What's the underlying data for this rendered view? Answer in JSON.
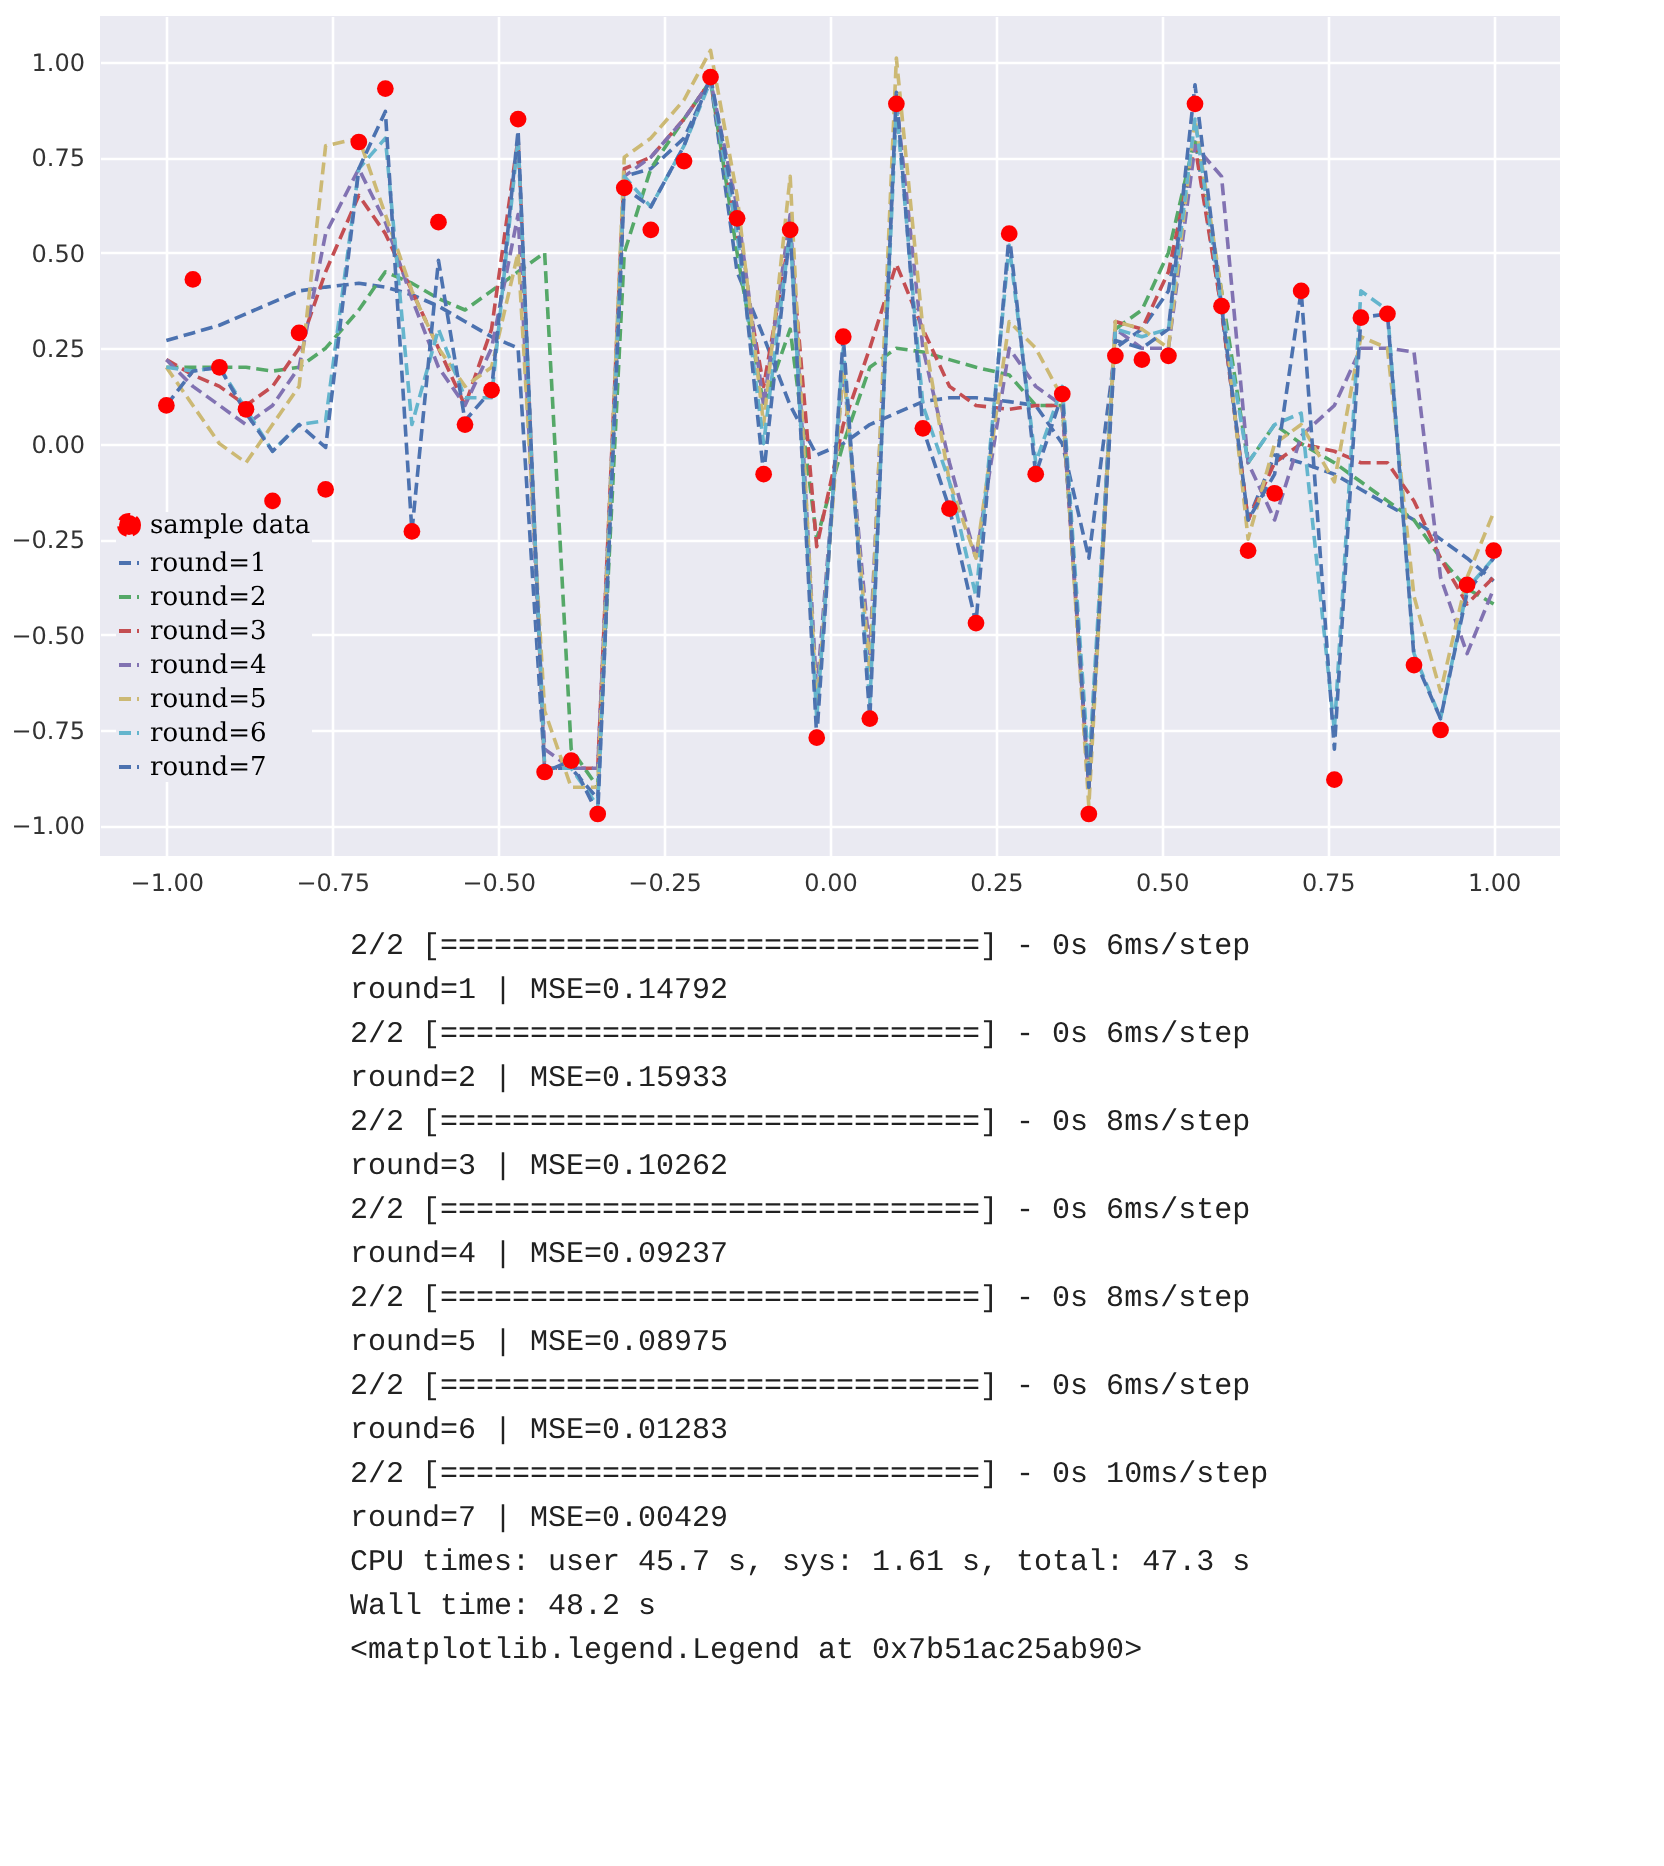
{
  "chart_data": {
    "type": "line",
    "x": [
      -1.0,
      -0.96,
      -0.92,
      -0.88,
      -0.84,
      -0.8,
      -0.76,
      -0.71,
      -0.67,
      -0.63,
      -0.59,
      -0.55,
      -0.51,
      -0.47,
      -0.43,
      -0.39,
      -0.35,
      -0.31,
      -0.27,
      -0.22,
      -0.18,
      -0.14,
      -0.1,
      -0.06,
      -0.02,
      0.02,
      0.06,
      0.1,
      0.14,
      0.18,
      0.22,
      0.27,
      0.31,
      0.35,
      0.39,
      0.43,
      0.47,
      0.51,
      0.55,
      0.59,
      0.63,
      0.67,
      0.71,
      0.76,
      0.8,
      0.84,
      0.88,
      0.92,
      0.96,
      1.0
    ],
    "series": [
      {
        "name": "sample data",
        "type": "scatter",
        "marker": "circle",
        "color": "#ff0000",
        "values": [
          0.1,
          0.43,
          0.2,
          0.09,
          -0.15,
          0.29,
          -0.12,
          0.79,
          0.93,
          -0.23,
          0.58,
          0.05,
          0.14,
          0.85,
          -0.86,
          -0.83,
          -0.97,
          0.67,
          0.56,
          0.74,
          0.96,
          0.59,
          -0.08,
          0.56,
          -0.77,
          0.28,
          -0.72,
          0.89,
          0.04,
          -0.17,
          -0.47,
          0.55,
          -0.08,
          0.13,
          -0.97,
          0.23,
          0.22,
          0.23,
          0.89,
          0.36,
          -0.28,
          -0.13,
          0.4,
          -0.88,
          0.33,
          0.34,
          -0.58,
          -0.75,
          -0.37,
          -0.28
        ]
      },
      {
        "name": "round=1",
        "type": "line",
        "line_style": "dashed",
        "color": "#4c72b0",
        "values": [
          0.27,
          0.29,
          0.31,
          0.34,
          0.37,
          0.4,
          0.41,
          0.42,
          0.41,
          0.39,
          0.36,
          0.32,
          0.28,
          0.25,
          -0.85,
          -0.85,
          -0.93,
          0.7,
          0.72,
          0.8,
          0.95,
          0.45,
          0.28,
          0.1,
          -0.03,
          0.0,
          0.05,
          0.08,
          0.11,
          0.12,
          0.12,
          0.11,
          0.1,
          0.0,
          -0.3,
          0.25,
          0.3,
          0.4,
          0.8,
          0.35,
          -0.2,
          -0.03,
          -0.05,
          -0.08,
          -0.12,
          -0.16,
          -0.2,
          -0.25,
          -0.3,
          -0.36
        ]
      },
      {
        "name": "round=2",
        "type": "line",
        "line_style": "dashed",
        "color": "#55a868",
        "values": [
          0.2,
          0.2,
          0.2,
          0.2,
          0.19,
          0.2,
          0.25,
          0.35,
          0.45,
          0.42,
          0.38,
          0.35,
          0.4,
          0.45,
          0.5,
          -0.8,
          -0.9,
          0.5,
          0.72,
          0.85,
          0.95,
          0.5,
          0.1,
          0.3,
          -0.25,
          0.0,
          0.2,
          0.25,
          0.24,
          0.22,
          0.2,
          0.18,
          0.1,
          0.1,
          -0.9,
          0.3,
          0.35,
          0.5,
          0.8,
          0.4,
          -0.05,
          0.05,
          0.0,
          -0.05,
          -0.1,
          -0.15,
          -0.2,
          -0.3,
          -0.38,
          -0.42
        ]
      },
      {
        "name": "round=3",
        "type": "line",
        "line_style": "dashed",
        "color": "#c44e52",
        "values": [
          0.22,
          0.18,
          0.15,
          0.1,
          0.15,
          0.25,
          0.45,
          0.65,
          0.55,
          0.4,
          0.25,
          0.1,
          0.3,
          0.8,
          -0.85,
          -0.85,
          -0.85,
          0.72,
          0.75,
          0.85,
          0.95,
          0.55,
          0.15,
          0.55,
          -0.27,
          0.05,
          0.25,
          0.47,
          0.3,
          0.15,
          0.1,
          0.09,
          0.1,
          0.1,
          -0.9,
          0.32,
          0.3,
          0.45,
          0.78,
          0.35,
          -0.2,
          -0.05,
          0.0,
          -0.02,
          -0.05,
          -0.05,
          -0.15,
          -0.3,
          -0.42,
          -0.35
        ]
      },
      {
        "name": "round=4",
        "type": "line",
        "line_style": "dashed",
        "color": "#8172b2",
        "values": [
          0.22,
          0.15,
          0.1,
          0.05,
          0.1,
          0.2,
          0.55,
          0.72,
          0.58,
          0.38,
          0.2,
          0.1,
          0.25,
          0.6,
          -0.8,
          -0.85,
          -0.85,
          0.7,
          0.75,
          0.85,
          0.95,
          0.62,
          0.1,
          0.6,
          -0.65,
          0.2,
          -0.55,
          0.9,
          0.25,
          -0.05,
          -0.3,
          0.25,
          0.15,
          0.1,
          -0.9,
          0.3,
          0.25,
          0.25,
          0.78,
          0.7,
          -0.05,
          -0.2,
          0.02,
          0.1,
          0.25,
          0.25,
          0.24,
          -0.35,
          -0.55,
          -0.38
        ]
      },
      {
        "name": "round=5",
        "type": "line",
        "line_style": "dashed",
        "color": "#ccb974",
        "values": [
          0.2,
          0.1,
          0.0,
          -0.05,
          0.05,
          0.15,
          0.78,
          0.8,
          0.6,
          0.4,
          0.25,
          0.15,
          0.2,
          0.5,
          -0.7,
          -0.9,
          -0.9,
          0.75,
          0.8,
          0.9,
          1.03,
          0.65,
          0.05,
          0.7,
          -0.7,
          0.2,
          -0.6,
          1.01,
          0.3,
          -0.1,
          -0.3,
          0.32,
          0.25,
          0.12,
          -0.95,
          0.32,
          0.3,
          0.25,
          0.85,
          0.4,
          -0.25,
          0.0,
          0.05,
          -0.1,
          0.28,
          0.25,
          -0.4,
          -0.65,
          -0.35,
          -0.18
        ]
      },
      {
        "name": "round=6",
        "type": "line",
        "line_style": "dashed",
        "color": "#64b5cd",
        "values": [
          0.2,
          0.19,
          0.2,
          0.09,
          -0.02,
          0.05,
          0.06,
          0.72,
          0.8,
          0.05,
          0.3,
          0.12,
          0.12,
          0.8,
          -0.85,
          -0.85,
          -0.95,
          0.7,
          0.62,
          0.78,
          0.95,
          0.55,
          0.0,
          0.56,
          -0.72,
          0.25,
          -0.68,
          0.88,
          0.1,
          -0.1,
          -0.4,
          0.52,
          -0.05,
          0.15,
          -0.85,
          0.3,
          0.28,
          0.3,
          0.85,
          0.36,
          -0.05,
          0.05,
          0.08,
          -0.75,
          0.4,
          0.35,
          -0.55,
          -0.72,
          -0.38,
          -0.3
        ]
      },
      {
        "name": "round=7",
        "type": "line",
        "line_style": "dashed",
        "color": "#4c72b0",
        "values": [
          0.1,
          0.19,
          0.2,
          0.08,
          -0.02,
          0.05,
          -0.01,
          0.72,
          0.87,
          -0.23,
          0.48,
          0.06,
          0.14,
          0.82,
          -0.86,
          -0.83,
          -0.97,
          0.67,
          0.62,
          0.78,
          0.96,
          0.59,
          -0.08,
          0.56,
          -0.77,
          0.28,
          -0.72,
          0.92,
          0.04,
          -0.17,
          -0.47,
          0.55,
          -0.08,
          0.13,
          -0.9,
          0.27,
          0.25,
          0.3,
          0.94,
          0.36,
          -0.2,
          -0.08,
          0.4,
          -0.8,
          0.33,
          0.34,
          -0.56,
          -0.72,
          -0.39,
          -0.3
        ]
      }
    ],
    "xlim": [
      -1.1,
      1.1
    ],
    "ylim": [
      -1.08,
      1.12
    ],
    "xticks": [
      {
        "value": -1.0,
        "label": "−1.00"
      },
      {
        "value": -0.75,
        "label": "−0.75"
      },
      {
        "value": -0.5,
        "label": "−0.50"
      },
      {
        "value": -0.25,
        "label": "−0.25"
      },
      {
        "value": 0,
        "label": "0.00"
      },
      {
        "value": 0.25,
        "label": "0.25"
      },
      {
        "value": 0.5,
        "label": "0.50"
      },
      {
        "value": 0.75,
        "label": "0.75"
      },
      {
        "value": 1.0,
        "label": "1.00"
      }
    ],
    "yticks": [
      {
        "value": -1.0,
        "label": "−1.00"
      },
      {
        "value": -0.75,
        "label": "−0.75"
      },
      {
        "value": -0.5,
        "label": "−0.50"
      },
      {
        "value": -0.25,
        "label": "−0.25"
      },
      {
        "value": 0,
        "label": "0.00"
      },
      {
        "value": 0.25,
        "label": "0.25"
      },
      {
        "value": 0.5,
        "label": "0.50"
      },
      {
        "value": 0.75,
        "label": "0.75"
      },
      {
        "value": 1.0,
        "label": "1.00"
      }
    ],
    "grid": true,
    "legend": "bottom left",
    "annotations": [
      "2/2 [==============================] - 0s 6ms/step",
      "round=1 | MSE=0.14792",
      "2/2 [==============================] - 0s 6ms/step",
      "round=2 | MSE=0.15933",
      "2/2 [==============================] - 0s 8ms/step",
      "round=3 | MSE=0.10262",
      "2/2 [==============================] - 0s 6ms/step",
      "round=4 | MSE=0.09237",
      "2/2 [==============================] - 0s 8ms/step",
      "round=5 | MSE=0.08975",
      "2/2 [==============================] - 0s 6ms/step",
      "round=6 | MSE=0.01283",
      "2/2 [==============================] - 0s 10ms/step",
      "round=7 | MSE=0.00429",
      "CPU times: user 45.7 s, sys: 1.61 s, total: 47.3 s",
      "Wall time: 48.2 s",
      "<matplotlib.legend.Legend at 0x7b51ac25ab90>"
    ]
  }
}
